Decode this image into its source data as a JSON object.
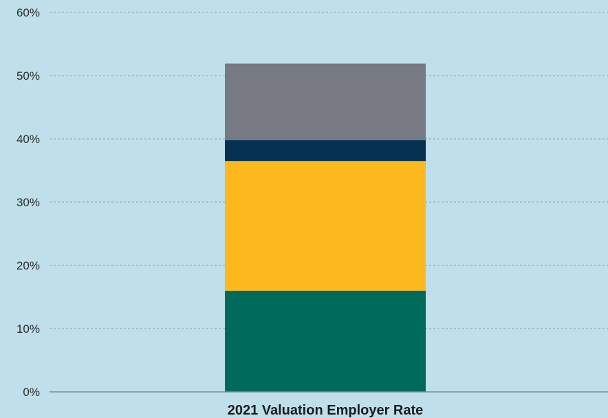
{
  "colors": {
    "background": "#bfe0ea",
    "segments": [
      "#006b5a",
      "#fdb81e",
      "#063152",
      "#777a83"
    ]
  },
  "chart_data": {
    "type": "bar",
    "stacked": true,
    "categories": [
      "2021 Valuation Employer Rate"
    ],
    "series": [
      {
        "values": [
          16
        ]
      },
      {
        "values": [
          20.5
        ]
      },
      {
        "values": [
          3.3
        ]
      },
      {
        "values": [
          12.1
        ]
      }
    ],
    "title": "",
    "xlabel": "",
    "ylabel": "",
    "ylim": [
      0,
      60
    ],
    "yticks": [
      0,
      10,
      20,
      30,
      40,
      50,
      60
    ],
    "ytick_labels": [
      "0%",
      "10%",
      "20%",
      "30%",
      "40%",
      "50%",
      "60%"
    ],
    "grid": true,
    "legend": "none"
  }
}
